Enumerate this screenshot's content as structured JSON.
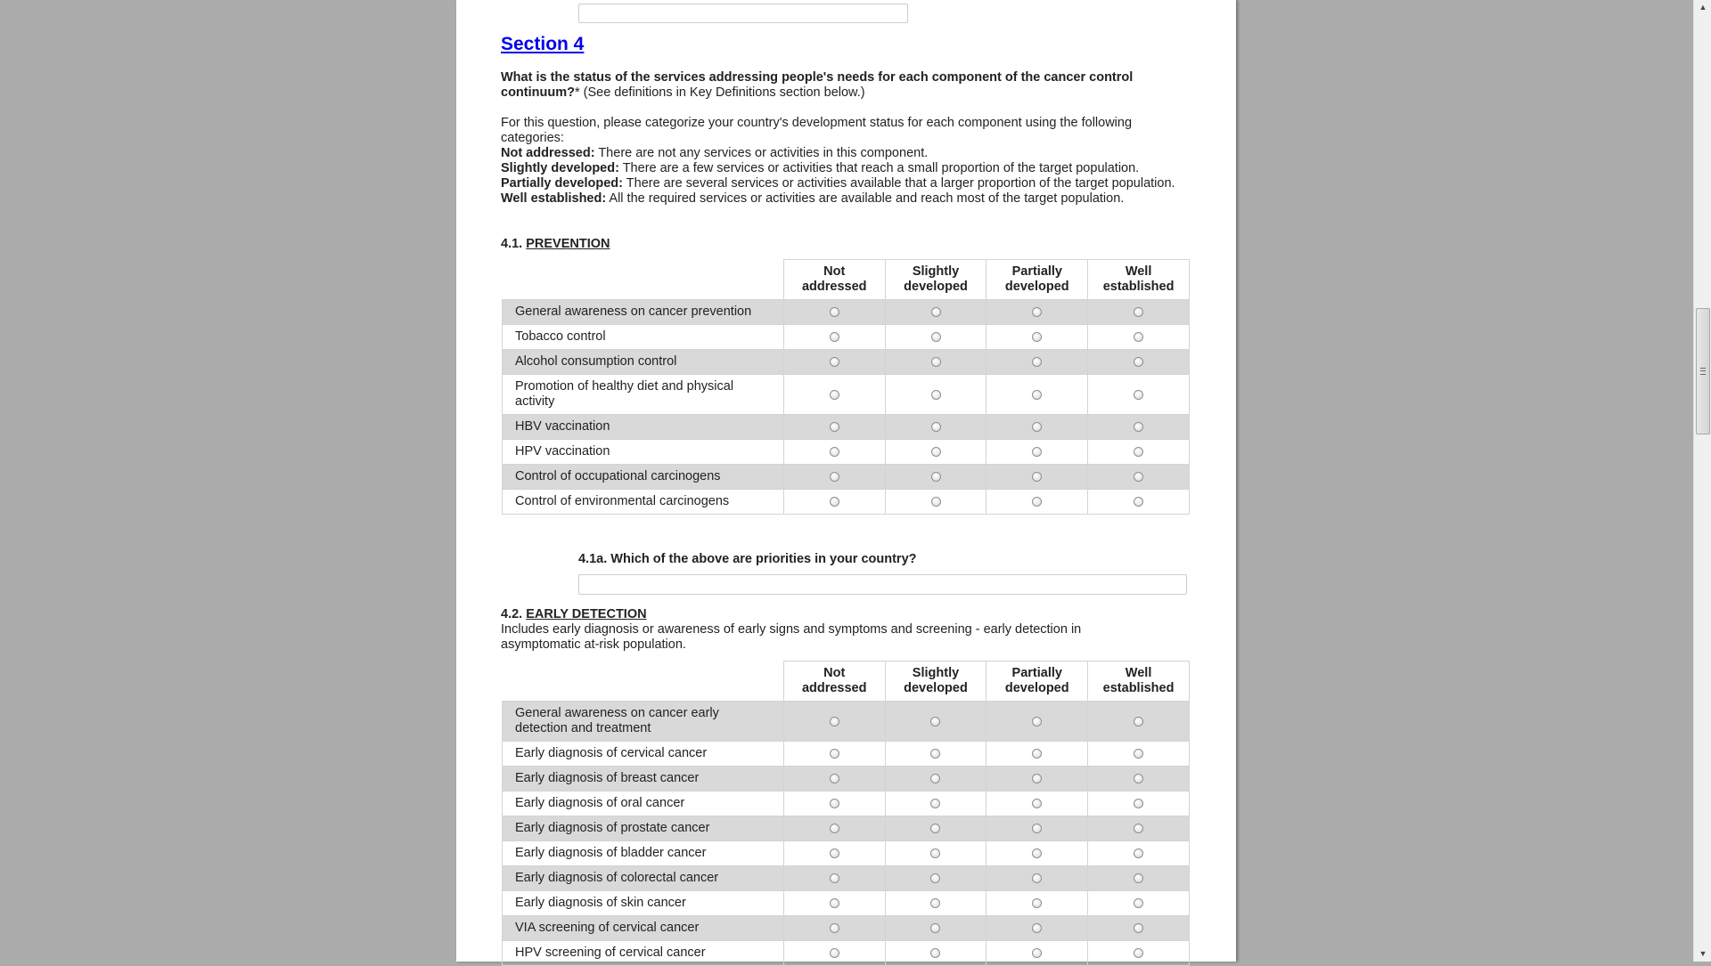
{
  "section": {
    "title": "Section 4",
    "question_bold": "What is the status of the services addressing people's needs for each component of the cancer control continuum?",
    "question_suffix": "* (See definitions in Key Definitions section below.)",
    "intro": "For this question, please categorize your country's development status for each component using the following categories:",
    "definitions": [
      {
        "term": "Not addressed:",
        "text": " There are not any services or activities in this component."
      },
      {
        "term": "Slightly developed:",
        "text": " There are a few services or activities that reach a small proportion of the target population."
      },
      {
        "term": "Partially developed:",
        "text": " There are several services or activities available that a larger proportion of the target population."
      },
      {
        "term": "Well established:",
        "text": " All the required services or activities are available and reach most of the target population."
      }
    ]
  },
  "columns": [
    [
      "Not",
      "addressed"
    ],
    [
      "Slightly",
      "developed"
    ],
    [
      "Partially",
      "developed"
    ],
    [
      "Well",
      "established"
    ]
  ],
  "prevention": {
    "number": "4.1.",
    "title": "PREVENTION",
    "rows": [
      "General awareness on cancer prevention",
      "Tobacco control",
      "Alcohol consumption control",
      "Promotion of healthy diet and physical activity",
      "HBV vaccination",
      "HPV vaccination",
      "Control of occupational carcinogens",
      "Control of environmental carcinogens"
    ]
  },
  "priorities": {
    "question": "4.1a. Which of the above are priorities in your country?",
    "value": ""
  },
  "early_detection": {
    "number": "4.2.",
    "title": "EARLY DETECTION",
    "description": "Includes early diagnosis or awareness of early signs and symptoms and screening - early detection in asymptomatic at-risk population.",
    "rows": [
      "General awareness on cancer early detection and treatment",
      "Early diagnosis of cervical cancer",
      "Early diagnosis of breast cancer",
      "Early diagnosis of oral cancer",
      "Early diagnosis of prostate cancer",
      "Early diagnosis of bladder cancer",
      "Early diagnosis of colorectal cancer",
      "Early diagnosis of skin cancer",
      "VIA screening of cervical cancer",
      "HPV screening of cervical cancer"
    ]
  },
  "icons": {
    "radio": "radio-button-unchecked",
    "scroll_up": "scroll-up-arrow",
    "scroll_down": "scroll-down-arrow"
  }
}
